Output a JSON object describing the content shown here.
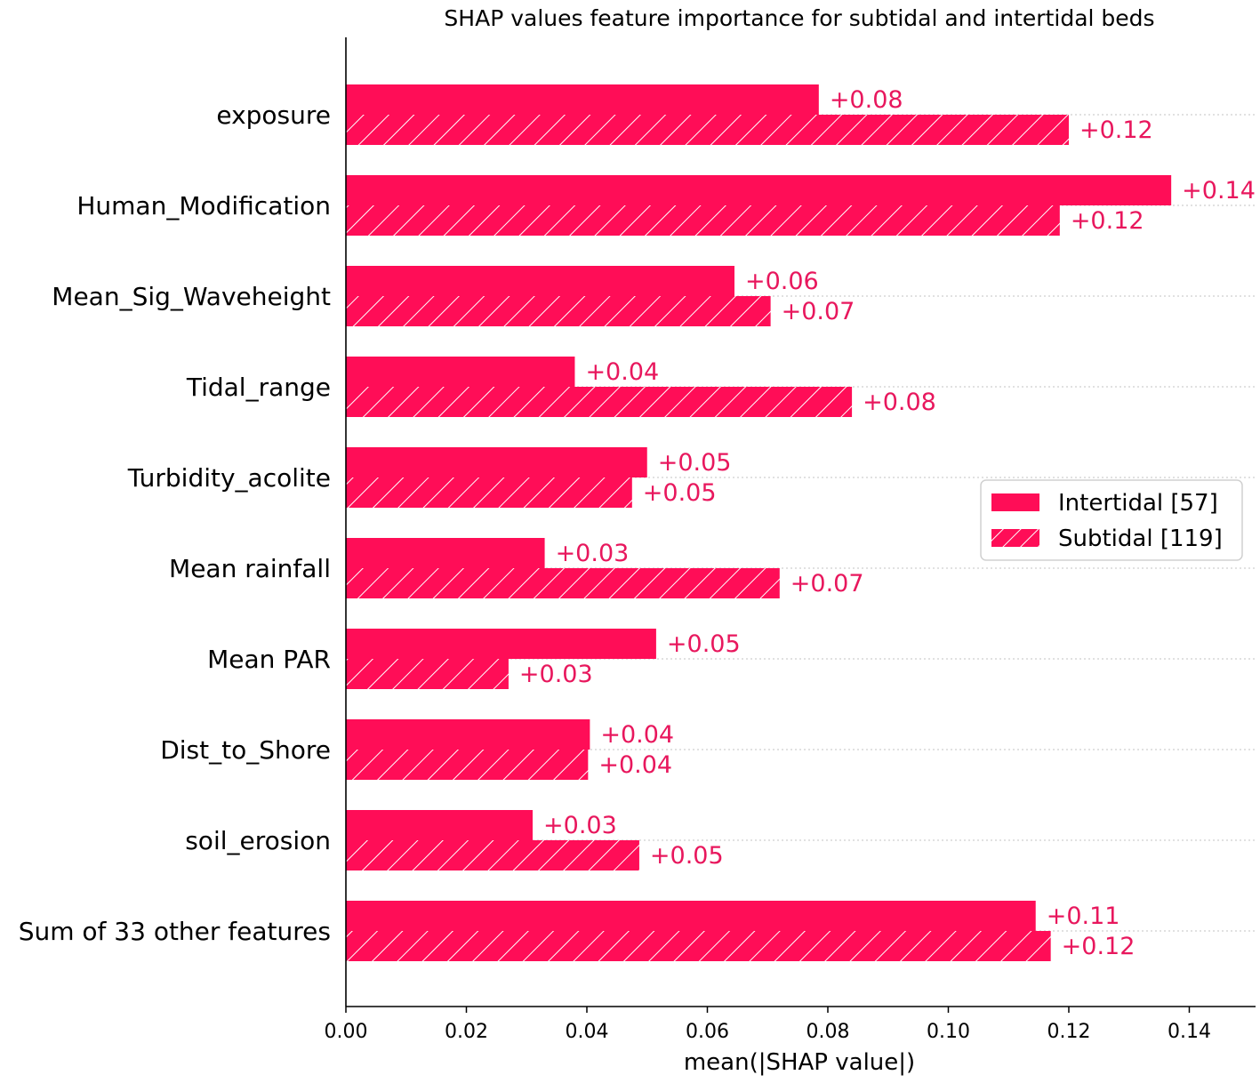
{
  "chart_data": {
    "type": "bar",
    "orientation": "horizontal",
    "title": "SHAP values feature importance for subtidal and intertidal beds",
    "xlabel": "mean(|SHAP value|)",
    "ylabel": "",
    "xlim": [
      0,
      0.151
    ],
    "xticks": [
      "0.00",
      "0.02",
      "0.04",
      "0.06",
      "0.08",
      "0.10",
      "0.12",
      "0.14"
    ],
    "grid": "dotted horizontal lines per category",
    "legend_position": "center-right",
    "categories": [
      "exposure",
      "Human_Modification",
      "Mean_Sig_Waveheight",
      "Tidal_range",
      "Turbidity_acolite",
      "Mean rainfall",
      "Mean PAR",
      "Dist_to_Shore",
      "soil_erosion",
      "Sum of 33 other features"
    ],
    "series": [
      {
        "name": "Intertidal [57]",
        "pattern": "solid",
        "values": [
          0.0785,
          0.137,
          0.0645,
          0.038,
          0.05,
          0.033,
          0.0515,
          0.0405,
          0.031,
          0.1145
        ],
        "labels": [
          "+0.08",
          "+0.14",
          "+0.06",
          "+0.04",
          "+0.05",
          "+0.03",
          "+0.05",
          "+0.04",
          "+0.03",
          "+0.11"
        ]
      },
      {
        "name": "Subtidal [119]",
        "pattern": "hatched",
        "values": [
          0.12,
          0.1185,
          0.0705,
          0.084,
          0.0475,
          0.072,
          0.027,
          0.0402,
          0.0487,
          0.117
        ],
        "labels": [
          "+0.12",
          "+0.12",
          "+0.07",
          "+0.08",
          "+0.05",
          "+0.07",
          "+0.03",
          "+0.04",
          "+0.05",
          "+0.12"
        ]
      }
    ],
    "colors": {
      "bar": "#ff0d57",
      "label": "#e8175d",
      "hatch": "#ffffff",
      "grid": "#cfcfcf"
    }
  }
}
